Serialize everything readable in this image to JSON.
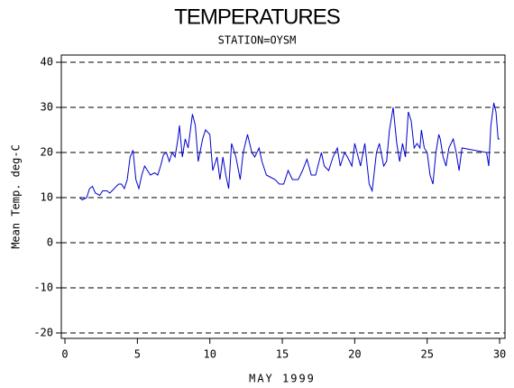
{
  "chart_data": {
    "type": "line",
    "title": "TEMPERATURES",
    "subtitle": "STATION=OYSM",
    "xlabel": "MAY 1999",
    "ylabel": "Mean Temp. deg-C",
    "xlim": [
      -0.25,
      30.37
    ],
    "ylim": [
      -21.2,
      41.6
    ],
    "xticks": [
      0,
      5,
      10,
      15,
      20,
      25,
      30
    ],
    "yticks": [
      -20,
      -10,
      0,
      10,
      20,
      30,
      40
    ],
    "grid": true,
    "series": [
      {
        "name": "Mean Temp",
        "color": "#0000cc",
        "x": [
          1.0,
          1.2,
          1.5,
          1.7,
          1.9,
          2.1,
          2.4,
          2.6,
          2.9,
          3.1,
          3.4,
          3.7,
          3.9,
          4.1,
          4.3,
          4.5,
          4.7,
          4.9,
          5.1,
          5.3,
          5.5,
          5.7,
          5.9,
          6.2,
          6.4,
          6.6,
          6.8,
          7.0,
          7.2,
          7.4,
          7.6,
          7.8,
          7.9,
          8.1,
          8.3,
          8.5,
          8.7,
          8.8,
          9.0,
          9.2,
          9.5,
          9.7,
          10.0,
          10.2,
          10.5,
          10.7,
          10.9,
          11.1,
          11.3,
          11.5,
          11.8,
          12.1,
          12.3,
          12.6,
          12.9,
          13.1,
          13.4,
          13.6,
          13.9,
          14.2,
          14.5,
          14.8,
          15.1,
          15.4,
          15.7,
          16.1,
          16.4,
          16.7,
          17.0,
          17.3,
          17.7,
          17.9,
          18.2,
          18.5,
          18.8,
          19.0,
          19.3,
          19.5,
          19.8,
          20.0,
          20.4,
          20.7,
          21.0,
          21.2,
          21.5,
          21.7,
          22.0,
          22.2,
          22.4,
          22.65,
          22.9,
          23.1,
          23.3,
          23.5,
          23.7,
          23.9,
          24.1,
          24.3,
          24.5,
          24.6,
          24.8,
          25.0,
          25.2,
          25.4,
          25.6,
          25.8,
          25.9,
          26.1,
          26.3,
          26.5,
          26.8,
          27.0,
          27.2,
          27.4,
          29.1,
          29.25,
          29.4,
          29.6,
          29.75,
          29.9,
          30.0
        ],
        "values": [
          10,
          9.5,
          10,
          12,
          12.5,
          11,
          10.5,
          11.5,
          11.5,
          11,
          12,
          13,
          13,
          12,
          14,
          19,
          20.5,
          14,
          12,
          15,
          17,
          16,
          15,
          15.5,
          15,
          17,
          19.5,
          20,
          18,
          20,
          19,
          23,
          26,
          19,
          23,
          21,
          26,
          28.5,
          26,
          18,
          23,
          25,
          24,
          16,
          19,
          14,
          19,
          15,
          12,
          22,
          19,
          14,
          20,
          24,
          20,
          19,
          21,
          18,
          15,
          14.5,
          14,
          13,
          13,
          16,
          14,
          14,
          16,
          18.5,
          15,
          15,
          20,
          17,
          16,
          19,
          21,
          17,
          20,
          19,
          17,
          22,
          17,
          22,
          13,
          11.5,
          20,
          22,
          17,
          18,
          25,
          30,
          22,
          18,
          22,
          19,
          29,
          27,
          21,
          22,
          21,
          25,
          21,
          20,
          15,
          13,
          20,
          24,
          23,
          19,
          17,
          21,
          23,
          20,
          16,
          21,
          20,
          17,
          26,
          31,
          29,
          23,
          23
        ]
      }
    ]
  }
}
